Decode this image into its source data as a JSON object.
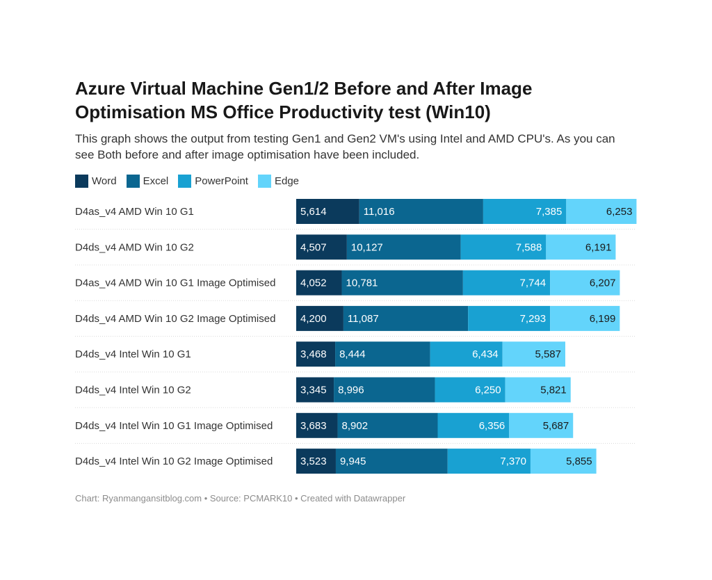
{
  "title": "Azure Virtual Machine Gen1/2 Before and After Image Optimisation MS Office Productivity test (Win10)",
  "subtitle": "This graph shows the output from testing Gen1 and Gen2 VM's using Intel and AMD CPU's. As you can see Both before and after image optimisation have been included.",
  "footer": "Chart: Ryanmangansitblog.com • Source: PCMARK10 • Created with Datawrapper",
  "chart_data": {
    "type": "bar",
    "orientation": "horizontal",
    "stacked": true,
    "categories": [
      "D4as_v4 AMD Win 10 G1",
      "D4ds_v4 AMD Win 10 G2",
      "D4as_v4 AMD Win 10 G1 Image Optimised",
      "D4ds_v4 AMD Win 10 G2 Image Optimised",
      "D4ds_v4 Intel Win 10 G1",
      "D4ds_v4 Intel Win 10 G2",
      "D4ds_v4 Intel Win 10 G1 Image Optimised",
      "D4ds_v4 Intel Win 10 G2 Image Optimised"
    ],
    "series": [
      {
        "name": "Word",
        "color": "#0b3a5c",
        "values": [
          5614,
          4507,
          4052,
          4200,
          3468,
          3345,
          3683,
          3523
        ]
      },
      {
        "name": "Excel",
        "color": "#0b6690",
        "values": [
          11016,
          10127,
          10781,
          11087,
          8444,
          8996,
          8902,
          9945
        ]
      },
      {
        "name": "PowerPoint",
        "color": "#19a1d2",
        "values": [
          7385,
          7588,
          7744,
          7293,
          6434,
          6250,
          6356,
          7370
        ]
      },
      {
        "name": "Edge",
        "color": "#63d4fb",
        "values": [
          6253,
          6191,
          6207,
          6199,
          5587,
          5821,
          5687,
          5855
        ]
      }
    ],
    "value_labels": "inside bars",
    "legend": "top-left",
    "grid": false
  }
}
